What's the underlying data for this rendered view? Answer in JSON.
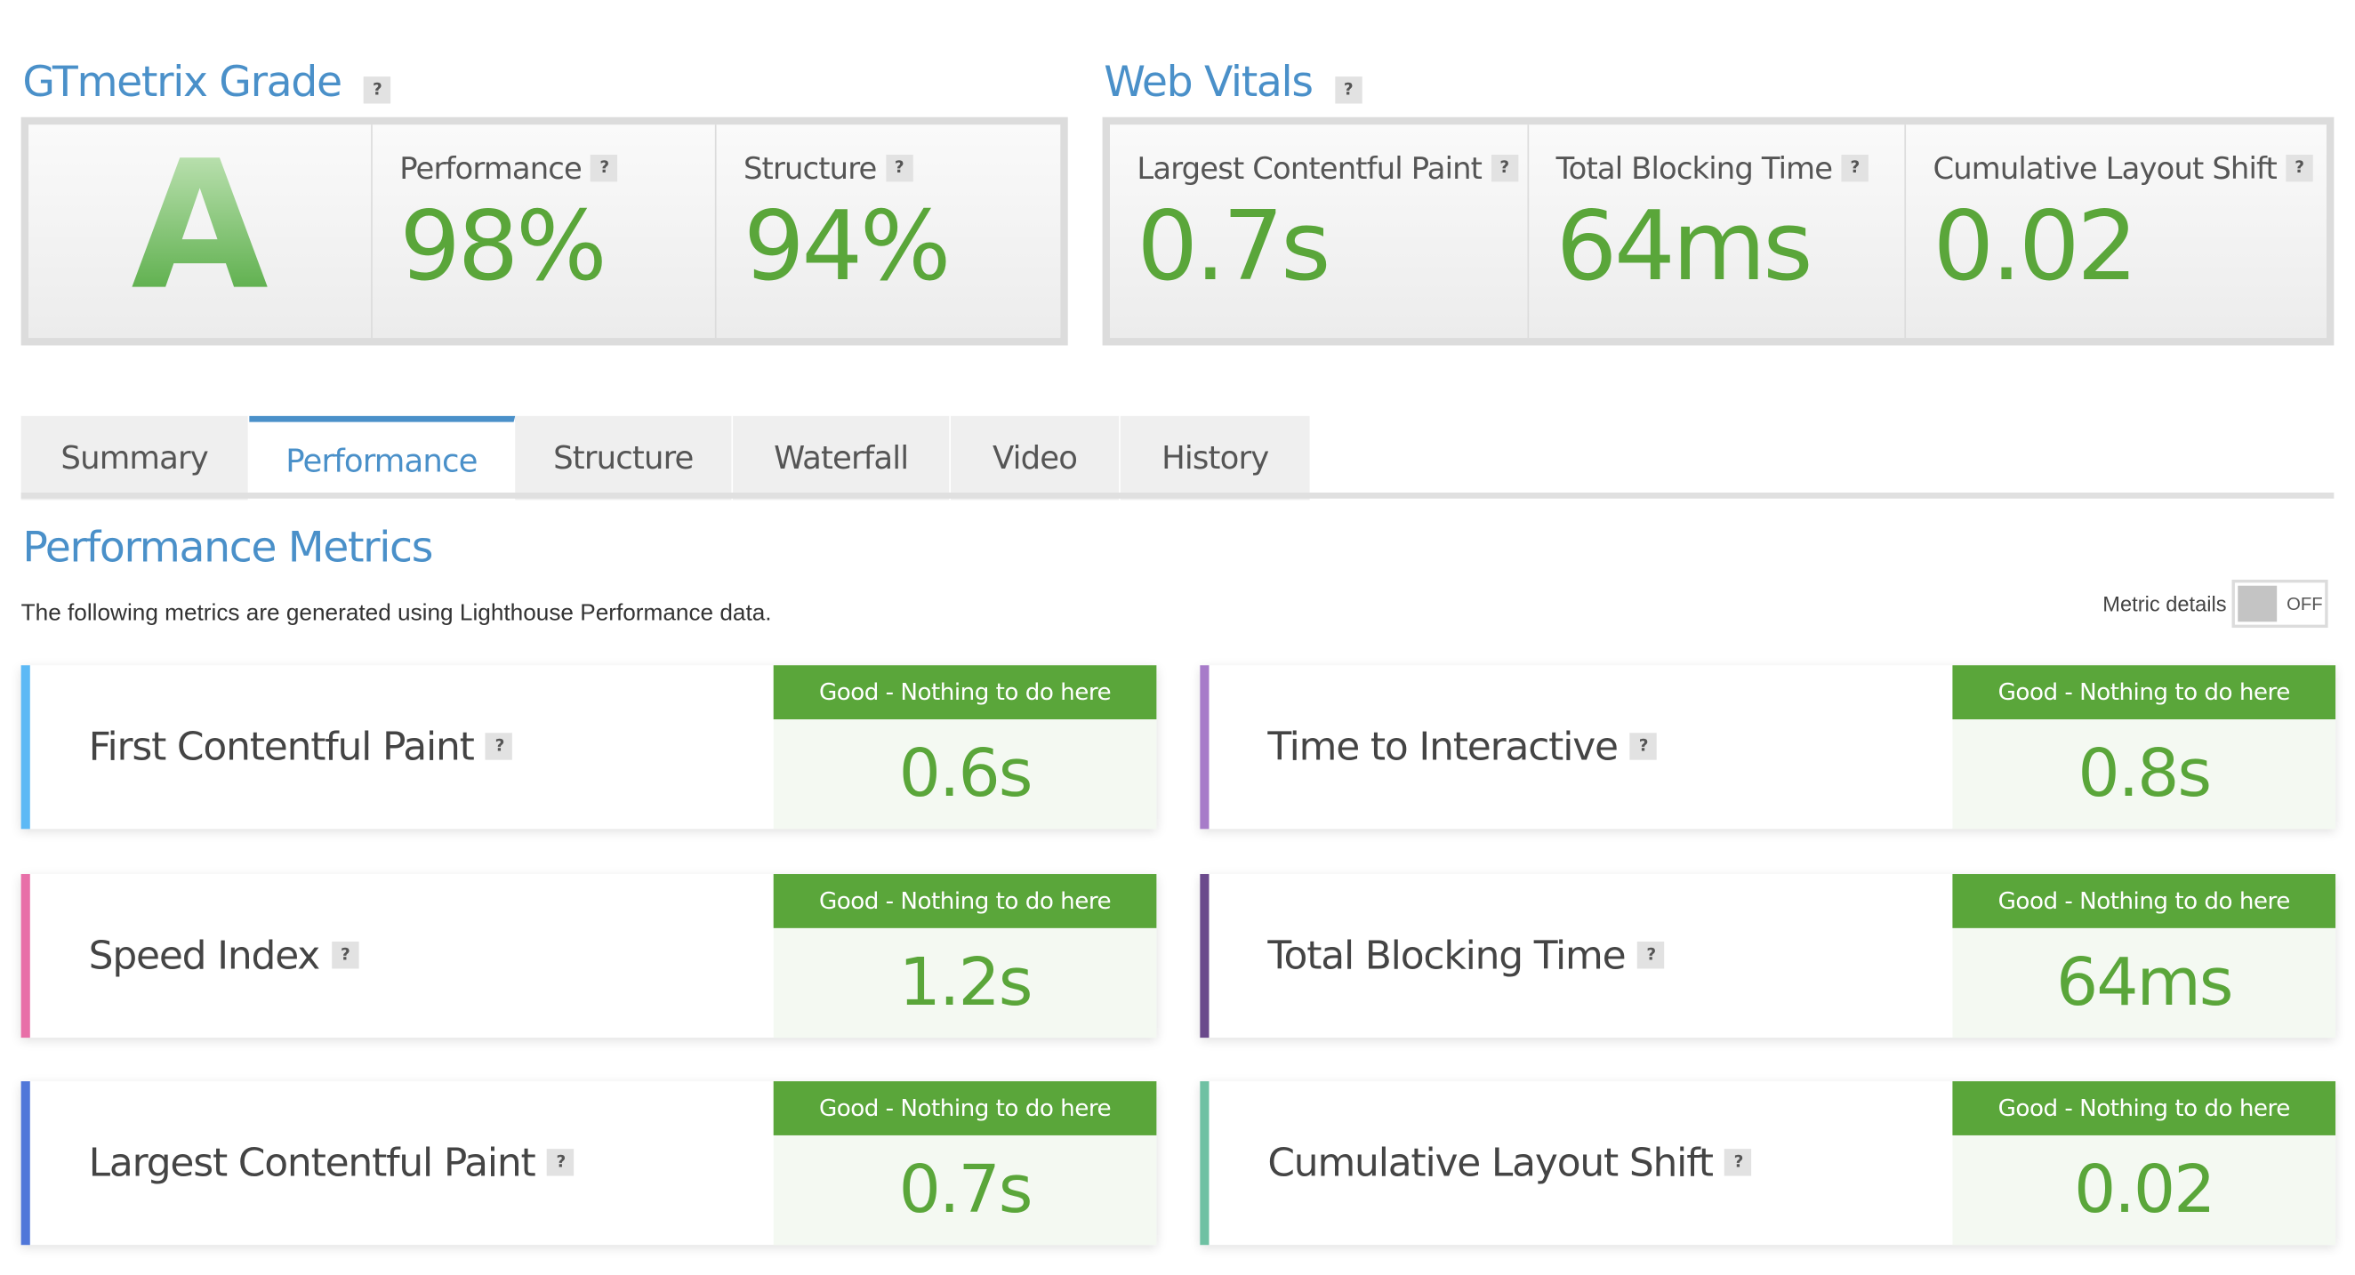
{
  "grade": {
    "title": "GTmetrix Grade",
    "help": "?",
    "letter": "A",
    "performance": {
      "label": "Performance",
      "value": "98%"
    },
    "structure": {
      "label": "Structure",
      "value": "94%"
    }
  },
  "web_vitals": {
    "title": "Web Vitals",
    "help": "?",
    "items": [
      {
        "label": "Largest Contentful Paint",
        "value": "0.7s"
      },
      {
        "label": "Total Blocking Time",
        "value": "64ms"
      },
      {
        "label": "Cumulative Layout Shift",
        "value": "0.02"
      }
    ]
  },
  "tabs": [
    {
      "label": "Summary",
      "active": false
    },
    {
      "label": "Performance",
      "active": true
    },
    {
      "label": "Structure",
      "active": false
    },
    {
      "label": "Waterfall",
      "active": false
    },
    {
      "label": "Video",
      "active": false
    },
    {
      "label": "History",
      "active": false
    }
  ],
  "perf_metrics": {
    "title": "Performance Metrics",
    "subtitle": "The following metrics are generated using Lighthouse Performance data.",
    "toggle_label": "Metric details",
    "toggle_state": "OFF",
    "metrics": [
      {
        "name": "First Contentful Paint",
        "status": "Good - Nothing to do here",
        "value": "0.6s",
        "color": "#5db9f5"
      },
      {
        "name": "Time to Interactive",
        "status": "Good - Nothing to do here",
        "value": "0.8s",
        "color": "#a77bc9"
      },
      {
        "name": "Speed Index",
        "status": "Good - Nothing to do here",
        "value": "1.2s",
        "color": "#e86fa8"
      },
      {
        "name": "Total Blocking Time",
        "status": "Good - Nothing to do here",
        "value": "64ms",
        "color": "#6b4a8c"
      },
      {
        "name": "Largest Contentful Paint",
        "status": "Good - Nothing to do here",
        "value": "0.7s",
        "color": "#5077d9"
      },
      {
        "name": "Cumulative Layout Shift",
        "status": "Good - Nothing to do here",
        "value": "0.02",
        "color": "#6fc1a3"
      }
    ]
  },
  "colors": {
    "accent_blue": "#4a90c9",
    "good_green": "#5aa63a"
  }
}
